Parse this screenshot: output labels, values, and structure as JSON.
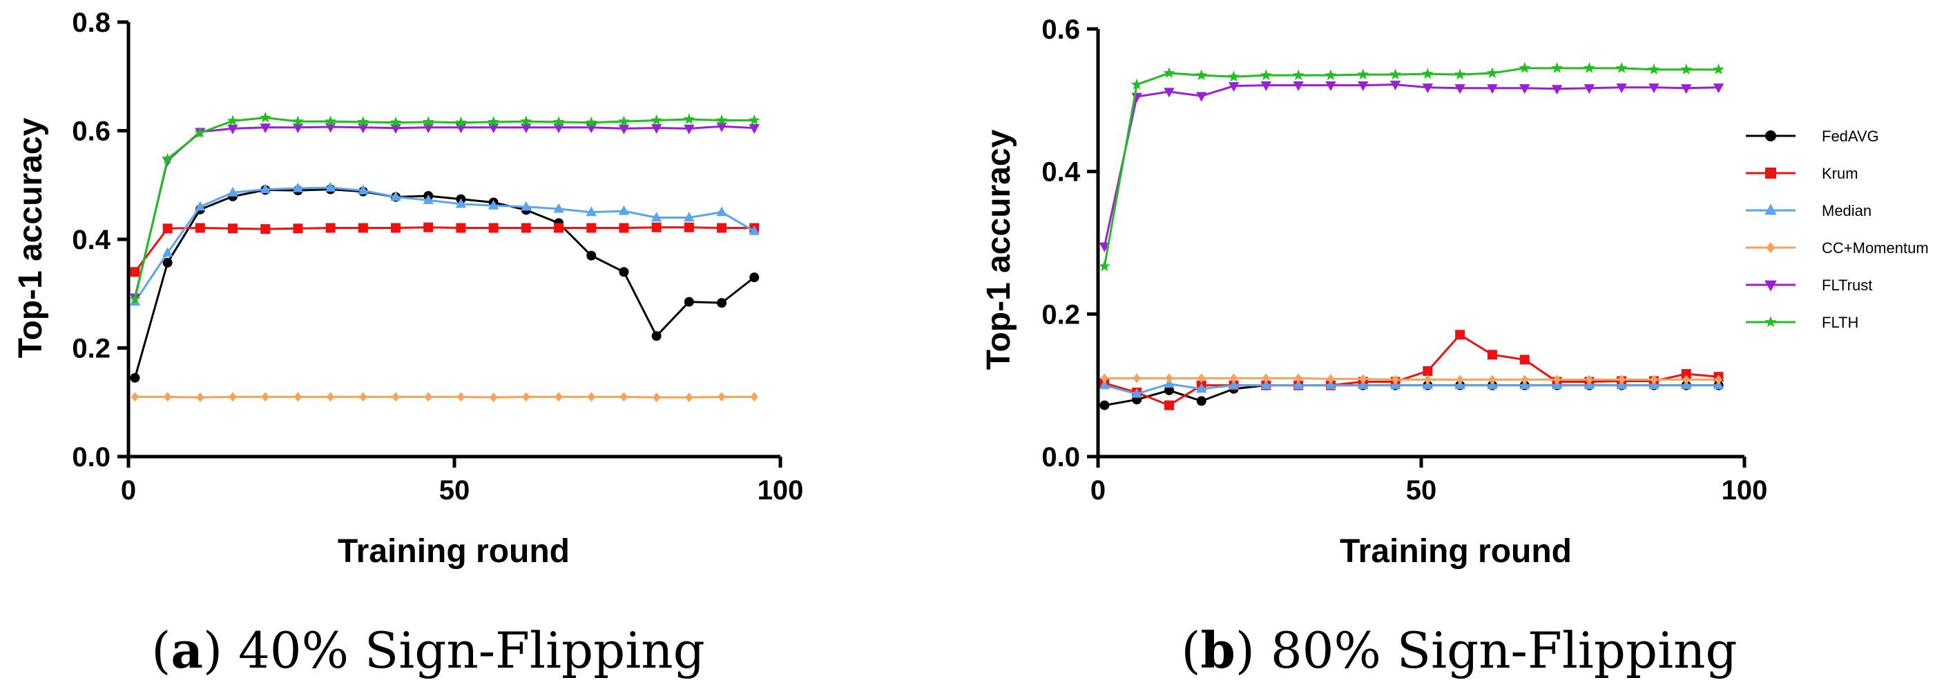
{
  "chart_data": [
    {
      "type": "line",
      "caption": {
        "letter": "a",
        "text": "40% Sign-Flipping"
      },
      "xlabel": "Training round",
      "ylabel": "Top-1 accuracy",
      "xlim": [
        0,
        100
      ],
      "ylim": [
        0,
        0.8
      ],
      "xticks": [
        0,
        50,
        100
      ],
      "yticks": [
        0.0,
        0.2,
        0.4,
        0.6,
        0.8
      ],
      "x": [
        1,
        6,
        11,
        16,
        21,
        26,
        31,
        36,
        41,
        46,
        51,
        56,
        61,
        66,
        71,
        76,
        81,
        86,
        91,
        96
      ],
      "series": [
        {
          "name": "FedAVG",
          "values": [
            0.145,
            0.357,
            0.455,
            0.479,
            0.491,
            0.49,
            0.492,
            0.488,
            0.478,
            0.48,
            0.474,
            0.468,
            0.454,
            0.43,
            0.37,
            0.34,
            0.222,
            0.285,
            0.283,
            0.33
          ]
        },
        {
          "name": "Krum",
          "values": [
            0.34,
            0.42,
            0.421,
            0.42,
            0.419,
            0.42,
            0.421,
            0.421,
            0.421,
            0.422,
            0.421,
            0.421,
            0.421,
            0.421,
            0.421,
            0.421,
            0.422,
            0.422,
            0.421,
            0.421
          ]
        },
        {
          "name": "Median",
          "values": [
            0.285,
            0.375,
            0.46,
            0.486,
            0.492,
            0.494,
            0.495,
            0.49,
            0.478,
            0.472,
            0.465,
            0.462,
            0.46,
            0.456,
            0.45,
            0.452,
            0.44,
            0.44,
            0.45,
            0.415
          ]
        },
        {
          "name": "CC+Momentum",
          "values": [
            0.11,
            0.11,
            0.109,
            0.11,
            0.11,
            0.11,
            0.11,
            0.11,
            0.11,
            0.11,
            0.11,
            0.109,
            0.11,
            0.11,
            0.11,
            0.11,
            0.109,
            0.109,
            0.11,
            0.11
          ]
        },
        {
          "name": "FLTrust",
          "values": [
            0.293,
            0.545,
            0.598,
            0.604,
            0.606,
            0.606,
            0.607,
            0.606,
            0.605,
            0.606,
            0.606,
            0.606,
            0.606,
            0.606,
            0.606,
            0.604,
            0.605,
            0.604,
            0.608,
            0.605
          ]
        },
        {
          "name": "FLTH",
          "values": [
            0.29,
            0.548,
            0.596,
            0.618,
            0.624,
            0.617,
            0.617,
            0.616,
            0.615,
            0.616,
            0.615,
            0.616,
            0.617,
            0.616,
            0.615,
            0.617,
            0.619,
            0.621,
            0.619,
            0.619
          ]
        }
      ]
    },
    {
      "type": "line",
      "caption": {
        "letter": "b",
        "text": "80% Sign-Flipping"
      },
      "xlabel": "Training round",
      "ylabel": "Top-1 accuracy",
      "xlim": [
        0,
        100
      ],
      "ylim": [
        0,
        0.6
      ],
      "xticks": [
        0,
        50,
        100
      ],
      "yticks": [
        0.0,
        0.2,
        0.4,
        0.6
      ],
      "x": [
        1,
        6,
        11,
        16,
        21,
        26,
        31,
        36,
        41,
        46,
        51,
        56,
        61,
        66,
        71,
        76,
        81,
        86,
        91,
        96
      ],
      "series": [
        {
          "name": "FedAVG",
          "values": [
            0.072,
            0.08,
            0.093,
            0.078,
            0.095,
            0.1,
            0.1,
            0.1,
            0.1,
            0.1,
            0.1,
            0.1,
            0.1,
            0.1,
            0.1,
            0.1,
            0.1,
            0.1,
            0.1,
            0.1
          ]
        },
        {
          "name": "Krum",
          "values": [
            0.103,
            0.09,
            0.072,
            0.1,
            0.1,
            0.1,
            0.1,
            0.1,
            0.105,
            0.105,
            0.12,
            0.171,
            0.143,
            0.136,
            0.105,
            0.105,
            0.106,
            0.106,
            0.116,
            0.112
          ]
        },
        {
          "name": "Median",
          "values": [
            0.1,
            0.088,
            0.102,
            0.095,
            0.1,
            0.1,
            0.1,
            0.1,
            0.1,
            0.1,
            0.1,
            0.1,
            0.1,
            0.1,
            0.1,
            0.1,
            0.1,
            0.1,
            0.1,
            0.1
          ]
        },
        {
          "name": "CC+Momentum",
          "values": [
            0.11,
            0.11,
            0.11,
            0.11,
            0.11,
            0.11,
            0.11,
            0.109,
            0.109,
            0.108,
            0.108,
            0.108,
            0.108,
            0.108,
            0.108,
            0.108,
            0.108,
            0.108,
            0.108,
            0.108
          ]
        },
        {
          "name": "FLTrust",
          "values": [
            0.295,
            0.505,
            0.512,
            0.506,
            0.52,
            0.521,
            0.521,
            0.521,
            0.521,
            0.522,
            0.518,
            0.517,
            0.517,
            0.517,
            0.516,
            0.517,
            0.518,
            0.518,
            0.517,
            0.518
          ]
        },
        {
          "name": "FLTH",
          "values": [
            0.267,
            0.522,
            0.538,
            0.535,
            0.533,
            0.535,
            0.535,
            0.535,
            0.536,
            0.536,
            0.537,
            0.536,
            0.538,
            0.545,
            0.545,
            0.545,
            0.545,
            0.543,
            0.543,
            0.543
          ]
        }
      ]
    }
  ],
  "legend": [
    {
      "name": "FedAVG",
      "color": "#000000",
      "marker": "circle"
    },
    {
      "name": "Krum",
      "color": "#ee1111",
      "marker": "square"
    },
    {
      "name": "Median",
      "color": "#5da4ee",
      "marker": "triangle-up"
    },
    {
      "name": "CC+Momentum",
      "color": "#f5a35a",
      "marker": "diamond"
    },
    {
      "name": "FLTrust",
      "color": "#9b1fd6",
      "marker": "triangle-down"
    },
    {
      "name": "FLTH",
      "color": "#1fbf1f",
      "marker": "star"
    }
  ]
}
